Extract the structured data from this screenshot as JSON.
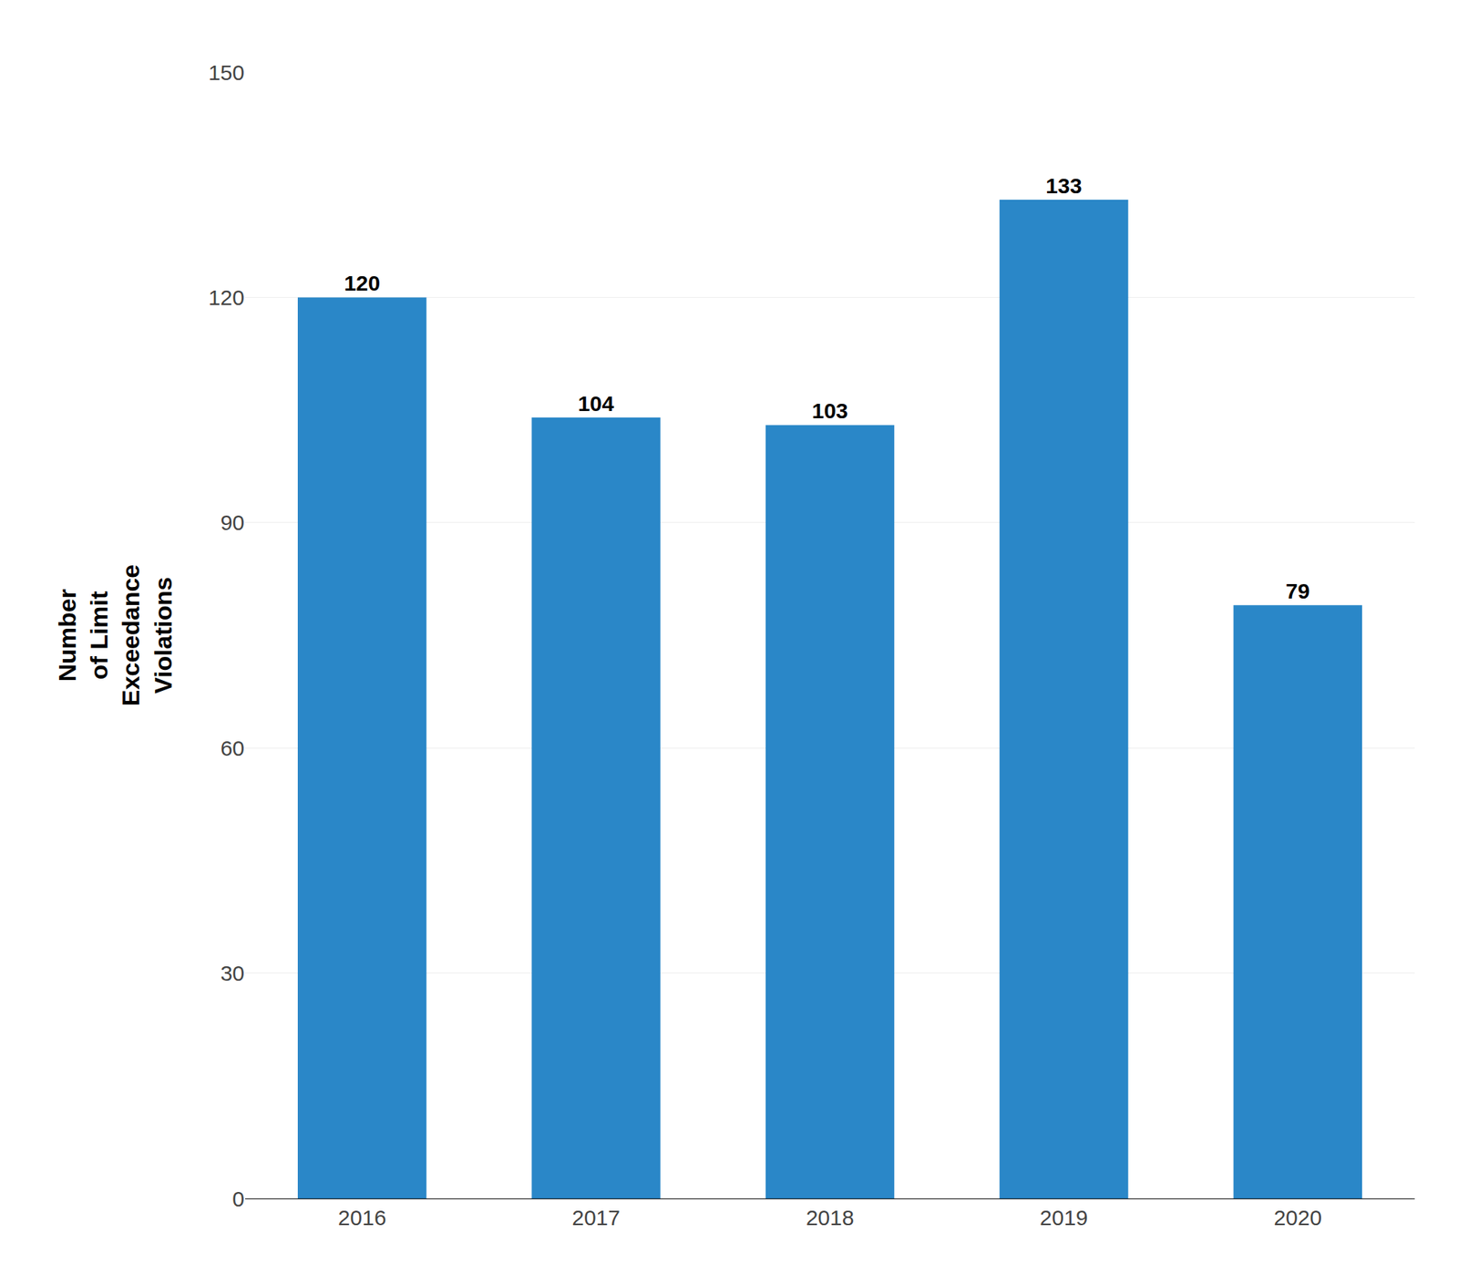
{
  "chart_data": {
    "type": "bar",
    "categories": [
      "2016",
      "2017",
      "2018",
      "2019",
      "2020"
    ],
    "values": [
      120,
      104,
      103,
      133,
      79
    ],
    "color": "#2a87c8",
    "ylabel": "Number\nof Limit\nExceedance\nViolations",
    "ylim": [
      0,
      150
    ],
    "yticks": [
      0,
      30,
      60,
      90,
      120,
      150
    ],
    "grid": true,
    "data_labels": true
  }
}
